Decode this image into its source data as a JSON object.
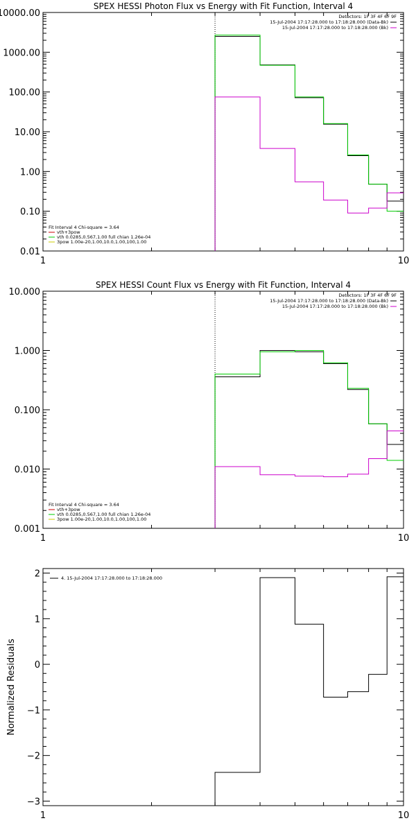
{
  "chart_data": [
    {
      "type": "line",
      "title": "SPEX HESSI Photon Flux vs Energy with Fit Function, Interval 4",
      "xscale": "log",
      "yscale": "log",
      "xlim": [
        1,
        10
      ],
      "ylim": [
        0.01,
        10000
      ],
      "xtick_labels": [
        "1",
        "10"
      ],
      "ytick_values": [
        0.01,
        0.1,
        1,
        10,
        100,
        1000,
        10000
      ],
      "ytick_labels": [
        "0.01",
        "0.10",
        "1.00",
        "10.00",
        "100.00",
        "1000.00",
        "10000.00"
      ],
      "energy_marker": 3,
      "legend_top": {
        "header": "Detectors: 1F 3F 4F 6F 9F",
        "entries": [
          {
            "label": "15-Jul-2004 17:17:28.000 to 17:18:28.000 (Data-Bk)",
            "color": "#000000"
          },
          {
            "label": "15-Jul-2004 17:17:28.000 to 17:18:28.000 (Bk)",
            "color": "#cc00cc"
          }
        ]
      },
      "legend_bottom": {
        "header": "Fit Interval  4    Chi-square = 3.64",
        "entries": [
          {
            "label": "vth+3pow",
            "color": "#cc0000"
          },
          {
            "label": "vth 0.0285,0.567,1.00  full chian 1.26e-04",
            "color": "#00cc00"
          },
          {
            "label": "3pow 1.00e-20,1.00,10.0,1.00,100,1.00",
            "color": "#cccc00"
          }
        ]
      },
      "series": [
        {
          "color": "#000000",
          "edges": [
            3,
            4,
            5,
            6,
            7,
            8,
            9,
            10
          ],
          "values": [
            2500,
            480,
            72,
            15.5,
            2.5,
            0.48,
            0.18
          ]
        },
        {
          "color": "#00cc00",
          "edges": [
            3,
            4,
            5,
            6,
            7,
            8,
            9,
            10
          ],
          "values": [
            2700,
            470,
            75,
            16,
            2.6,
            0.48,
            0.1
          ]
        },
        {
          "color": "#cc00cc",
          "edges": [
            3,
            4,
            5,
            6,
            7,
            8,
            9,
            10
          ],
          "values": [
            75,
            3.8,
            0.55,
            0.19,
            0.09,
            0.12,
            0.29
          ]
        }
      ]
    },
    {
      "type": "line",
      "title": "SPEX HESSI Count Flux vs Energy with Fit Function, Interval 4",
      "xscale": "log",
      "yscale": "log",
      "xlim": [
        1,
        10
      ],
      "ylim": [
        0.001,
        10
      ],
      "xtick_labels": [
        "1",
        "10"
      ],
      "ytick_values": [
        0.001,
        0.01,
        0.1,
        1,
        10
      ],
      "ytick_labels": [
        "0.001",
        "0.010",
        "0.100",
        "1.000",
        "10.000"
      ],
      "energy_marker": 3,
      "legend_top": {
        "header": "Detectors: 1F 3F 4F 6F 9F",
        "entries": [
          {
            "label": "15-Jul-2004 17:17:28.000 to 17:18:28.000 (Data-Bk)",
            "color": "#000000"
          },
          {
            "label": "15-Jul-2004 17:17:28.000 to 17:18:28.000 (Bk)",
            "color": "#cc00cc"
          }
        ]
      },
      "legend_bottom": {
        "header": "Fit Interval  4    Chi-square = 3.64",
        "entries": [
          {
            "label": "vth+3pow",
            "color": "#cc0000"
          },
          {
            "label": "vth 0.0285,0.567,1.00  full chian 1.26e-04",
            "color": "#00cc00"
          },
          {
            "label": "3pow 1.00e-20,1.00,10.0,1.00,100,1.00",
            "color": "#cccc00"
          }
        ]
      },
      "series": [
        {
          "color": "#000000",
          "edges": [
            3,
            4,
            5,
            6,
            7,
            8,
            9,
            10
          ],
          "values": [
            0.36,
            1.0,
            0.95,
            0.6,
            0.22,
            0.058,
            0.026
          ]
        },
        {
          "color": "#00cc00",
          "edges": [
            3,
            4,
            5,
            6,
            7,
            8,
            9,
            10
          ],
          "values": [
            0.4,
            0.95,
            1.0,
            0.62,
            0.23,
            0.058,
            0.014
          ]
        },
        {
          "color": "#cc00cc",
          "edges": [
            3,
            4,
            5,
            6,
            7,
            8,
            9,
            10
          ],
          "values": [
            0.011,
            0.008,
            0.0076,
            0.0074,
            0.0082,
            0.015,
            0.044
          ]
        }
      ]
    },
    {
      "type": "line",
      "title": "",
      "ylabel": "Normalized Residuals",
      "xscale": "log",
      "yscale": "linear",
      "xlim": [
        1,
        10
      ],
      "ylim": [
        -3.1,
        2.1
      ],
      "xtick_labels": [
        "1",
        "10"
      ],
      "ytick_values": [
        -3,
        -2,
        -1,
        0,
        1,
        2
      ],
      "ytick_labels": [
        "−3",
        "−2",
        "−1",
        "0",
        "1",
        "2"
      ],
      "legend": {
        "label": "4. 15-Jul-2004 17:17:28.000 to 17:18:28.000",
        "color": "#000000"
      },
      "series": [
        {
          "color": "#000000",
          "edges": [
            3,
            4,
            5,
            6,
            7,
            8,
            9,
            10
          ],
          "values": [
            -2.37,
            1.9,
            0.88,
            -0.72,
            -0.6,
            -0.22,
            1.92
          ]
        }
      ]
    }
  ]
}
